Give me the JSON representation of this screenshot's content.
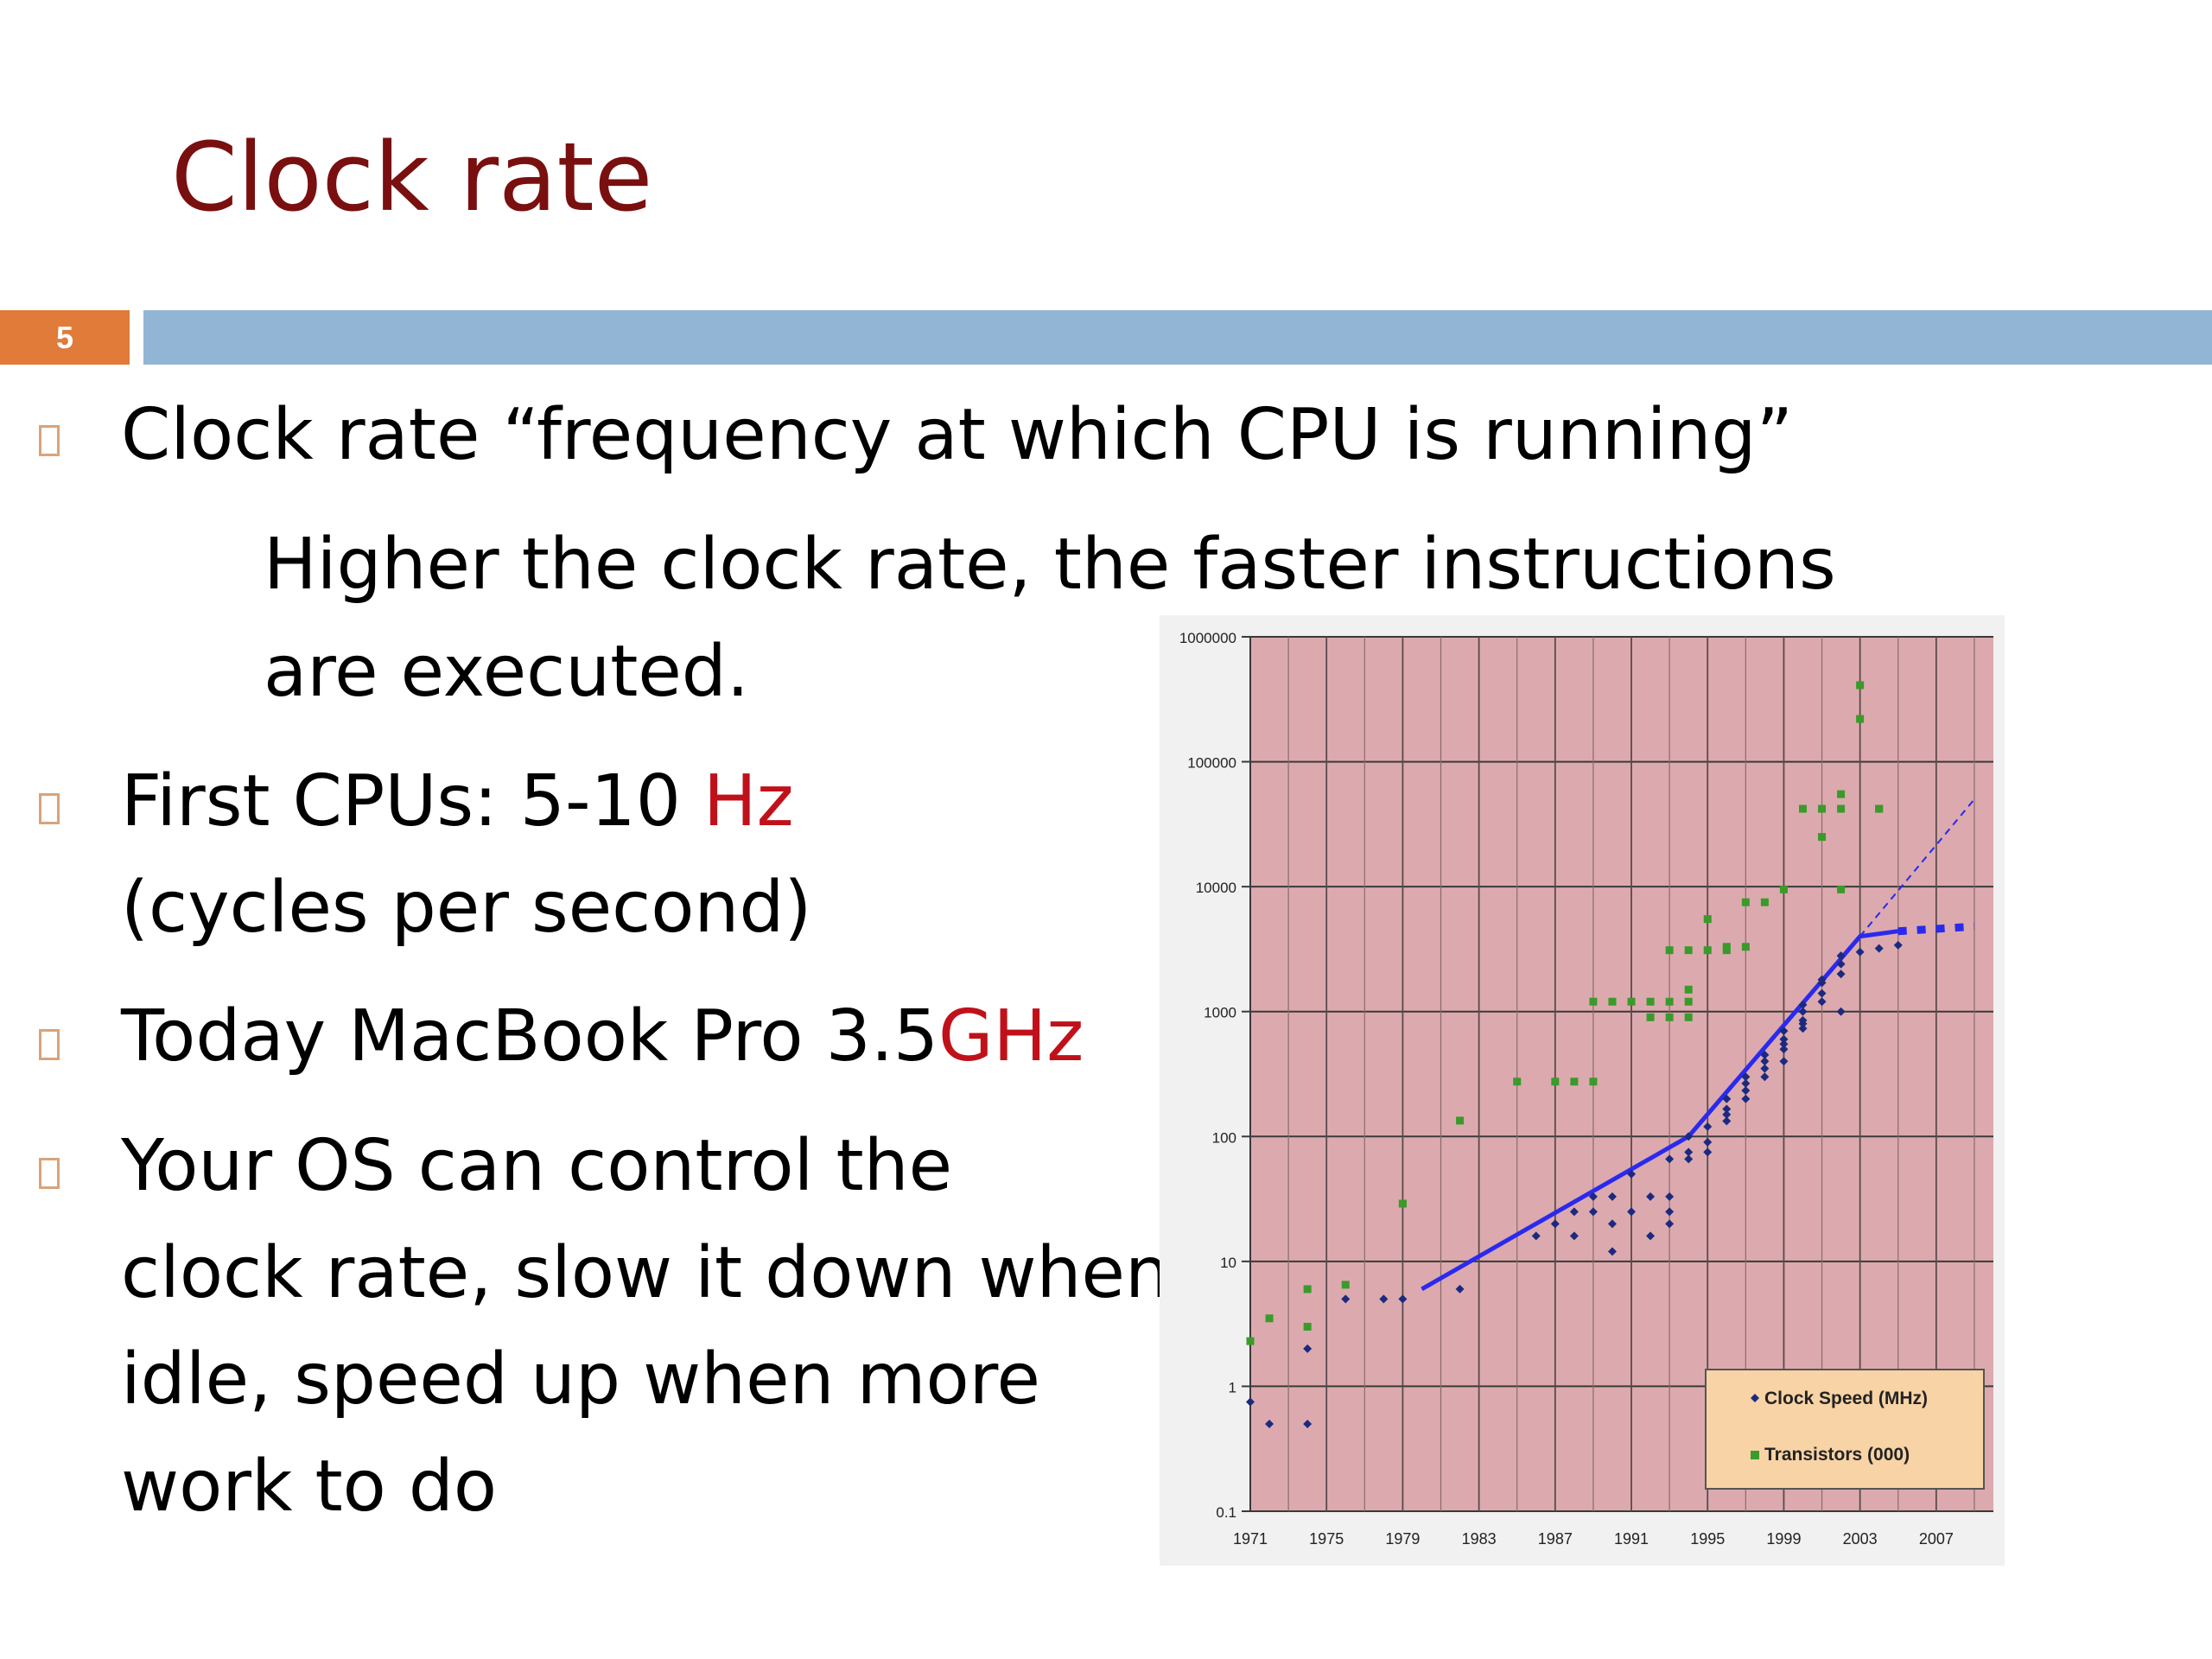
{
  "slide": {
    "title": "Clock rate",
    "number": "5"
  },
  "bullets": {
    "b1_line1": "Clock rate “frequency at which CPU is running”",
    "b1_line2": "Higher the clock rate, the faster instructions",
    "b1_line3": "are executed.",
    "b2_line1_prefix": "First CPUs: 5-10 ",
    "b2_line1_highlight": "Hz",
    "b2_line2": "(cycles per second)",
    "b3_prefix": "Today MacBook Pro 3.5",
    "b3_highlight": "GHz",
    "b4_line1": "Your OS can control the",
    "b4_line2": "clock rate, slow it down when",
    "b4_line3": "idle, speed up when more",
    "b4_line4": "work to do"
  },
  "colors": {
    "title": "#7a0f0f",
    "highlight": "#c0111a",
    "number_box": "#e07b39",
    "title_bar": "#93b5d5",
    "plot_background": "#dcaaae",
    "clock_series": "#1b2a80",
    "transistor_series": "#3a9a2a",
    "trend_line": "#2a2aee",
    "legend_background": "#f7d3a6"
  },
  "chart_data": {
    "type": "scatter",
    "y_scale": "log",
    "ylim": [
      0.1,
      1000000
    ],
    "xlim": [
      1971,
      2010
    ],
    "y_ticks": [
      "0.1",
      "1",
      "10",
      "100",
      "1000",
      "10000",
      "100000",
      "1000000"
    ],
    "x_ticks": [
      "1971",
      "1975",
      "1979",
      "1983",
      "1987",
      "1991",
      "1995",
      "1999",
      "2003",
      "2007"
    ],
    "grid": true,
    "legend_position": "bottom-right",
    "legend": [
      "Clock Speed (MHz)",
      "Transistors (000)"
    ],
    "series": [
      {
        "name": "Clock Speed (MHz)",
        "marker": "diamond",
        "points": [
          [
            1971,
            0.75
          ],
          [
            1972,
            0.5
          ],
          [
            1974,
            2
          ],
          [
            1974,
            0.5
          ],
          [
            1976,
            5
          ],
          [
            1978,
            5
          ],
          [
            1979,
            5
          ],
          [
            1982,
            6
          ],
          [
            1986,
            16
          ],
          [
            1987,
            20
          ],
          [
            1988,
            25
          ],
          [
            1988,
            16
          ],
          [
            1989,
            33
          ],
          [
            1989,
            25
          ],
          [
            1990,
            33
          ],
          [
            1990,
            20
          ],
          [
            1990,
            12
          ],
          [
            1991,
            25
          ],
          [
            1991,
            50
          ],
          [
            1992,
            33
          ],
          [
            1992,
            16
          ],
          [
            1993,
            66
          ],
          [
            1993,
            25
          ],
          [
            1993,
            33
          ],
          [
            1993,
            20
          ],
          [
            1994,
            66
          ],
          [
            1994,
            100
          ],
          [
            1994,
            75
          ],
          [
            1995,
            75
          ],
          [
            1995,
            90
          ],
          [
            1995,
            120
          ],
          [
            1996,
            133
          ],
          [
            1996,
            150
          ],
          [
            1996,
            166
          ],
          [
            1996,
            200
          ],
          [
            1997,
            200
          ],
          [
            1997,
            233
          ],
          [
            1997,
            266
          ],
          [
            1997,
            300
          ],
          [
            1998,
            300
          ],
          [
            1998,
            350
          ],
          [
            1998,
            400
          ],
          [
            1998,
            450
          ],
          [
            1999,
            400
          ],
          [
            1999,
            500
          ],
          [
            1999,
            550
          ],
          [
            1999,
            600
          ],
          [
            1999,
            700
          ],
          [
            2000,
            733
          ],
          [
            2000,
            800
          ],
          [
            2000,
            850
          ],
          [
            2000,
            1000
          ],
          [
            2000,
            1133
          ],
          [
            2001,
            1200
          ],
          [
            2001,
            1400
          ],
          [
            2001,
            1700
          ],
          [
            2001,
            1800
          ],
          [
            2002,
            2000
          ],
          [
            2002,
            2400
          ],
          [
            2002,
            2800
          ],
          [
            2002,
            1000
          ],
          [
            2003,
            3000
          ],
          [
            2004,
            3200
          ],
          [
            2005,
            3400
          ]
        ]
      },
      {
        "name": "Transistors (000)",
        "marker": "square",
        "points": [
          [
            1971,
            2.3
          ],
          [
            1972,
            3.5
          ],
          [
            1974,
            6
          ],
          [
            1974,
            3
          ],
          [
            1976,
            6.5
          ],
          [
            1979,
            29
          ],
          [
            1979,
            29
          ],
          [
            1982,
            134
          ],
          [
            1985,
            275
          ],
          [
            1987,
            275
          ],
          [
            1988,
            275
          ],
          [
            1989,
            1200
          ],
          [
            1989,
            275
          ],
          [
            1990,
            1200
          ],
          [
            1991,
            1200
          ],
          [
            1992,
            900
          ],
          [
            1992,
            1200
          ],
          [
            1993,
            3100
          ],
          [
            1993,
            1200
          ],
          [
            1993,
            900
          ],
          [
            1994,
            1500
          ],
          [
            1994,
            3100
          ],
          [
            1994,
            900
          ],
          [
            1994,
            1200
          ],
          [
            1995,
            3100
          ],
          [
            1995,
            5500
          ],
          [
            1996,
            3100
          ],
          [
            1996,
            3300
          ],
          [
            1997,
            3300
          ],
          [
            1997,
            7500
          ],
          [
            1998,
            7500
          ],
          [
            1999,
            9500
          ],
          [
            2000,
            42000
          ],
          [
            2001,
            42000
          ],
          [
            2001,
            25000
          ],
          [
            2002,
            55000
          ],
          [
            2002,
            42000
          ],
          [
            2002,
            9500
          ],
          [
            2003,
            220000
          ],
          [
            2003,
            410000
          ],
          [
            2004,
            42000
          ],
          [
            2004,
            42000
          ]
        ]
      }
    ],
    "trend_lines": [
      {
        "points": [
          [
            1980,
            6
          ],
          [
            1994,
            100
          ],
          [
            2003,
            4000
          ],
          [
            2005,
            4400
          ]
        ],
        "style": "solid"
      },
      {
        "points": [
          [
            2005,
            4400
          ],
          [
            2009,
            4800
          ]
        ],
        "style": "dotted"
      },
      {
        "points": [
          [
            2003,
            4000
          ],
          [
            2009,
            50000
          ]
        ],
        "style": "dashed"
      }
    ]
  }
}
